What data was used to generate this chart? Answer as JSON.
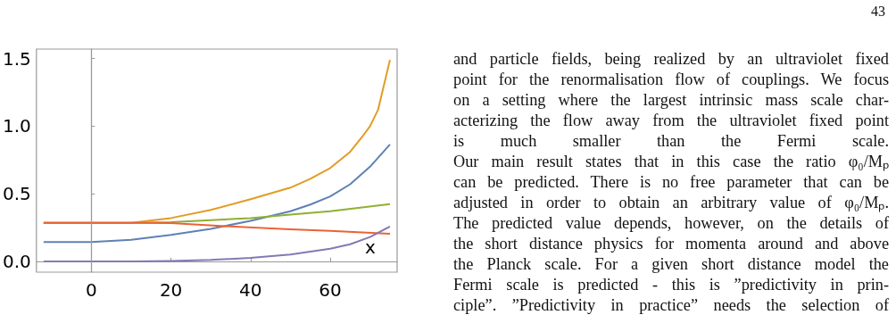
{
  "chart_data": {
    "type": "line",
    "xlabel": "x",
    "xlim": [
      -13.8,
      76.8
    ],
    "ylim": [
      -0.08,
      1.57
    ],
    "xticks": [
      0,
      20,
      40,
      60
    ],
    "yticks": [
      {
        "value": 0,
        "label": "0.0"
      },
      {
        "value": 0.5,
        "label": "0.5"
      },
      {
        "value": 1,
        "label": "1.0"
      },
      {
        "value": 1.5,
        "label": "1.5"
      }
    ],
    "marker": "none",
    "line_style": "solid",
    "ref_lines": [
      {
        "axis": "x",
        "value": 0,
        "label": null,
        "color": "#999999"
      }
    ],
    "series": [
      {
        "color": "#e19c24",
        "x": [
          -12,
          0,
          10,
          20,
          30,
          40,
          50,
          55,
          60,
          65,
          68,
          70,
          72,
          75
        ],
        "values": [
          0.285,
          0.285,
          0.285,
          0.32,
          0.38,
          0.46,
          0.545,
          0.61,
          0.69,
          0.81,
          0.92,
          1.0,
          1.12,
          1.49
        ]
      },
      {
        "color": "#5e81b5",
        "x": [
          -12,
          0,
          10,
          20,
          30,
          40,
          50,
          55,
          60,
          65,
          70,
          75
        ],
        "values": [
          0.143,
          0.143,
          0.16,
          0.196,
          0.24,
          0.3,
          0.37,
          0.42,
          0.48,
          0.57,
          0.7,
          0.865
        ]
      },
      {
        "color": "#8fb032",
        "x": [
          -12,
          0,
          10,
          20,
          30,
          40,
          50,
          60,
          75
        ],
        "values": [
          0.285,
          0.285,
          0.285,
          0.29,
          0.305,
          0.32,
          0.346,
          0.37,
          0.424
        ]
      },
      {
        "color": "#eb6235",
        "x": [
          -12,
          0,
          10,
          20,
          35,
          50,
          60,
          75
        ],
        "values": [
          0.285,
          0.285,
          0.285,
          0.283,
          0.258,
          0.236,
          0.225,
          0.203
        ]
      },
      {
        "color": "#8778b3",
        "x": [
          -12,
          0,
          10,
          20,
          30,
          40,
          50,
          60,
          65,
          70,
          75
        ],
        "values": [
          0,
          0,
          0,
          0.003,
          0.01,
          0.026,
          0.05,
          0.093,
          0.126,
          0.18,
          0.258
        ]
      }
    ],
    "annotations": [
      "43",
      "and particle fields, being realized by an ultraviolet fixed",
      "point for the renormalisation flow of couplings. We focus",
      "on a setting where the largest intrinsic mass scale char-",
      "acterizing the flow away from the ultraviolet fixed point",
      "is much smaller than the Fermi scale.",
      "Our main result states that in this case the ratio φ₀/Mₚ",
      "can be predicted. There is no free parameter that can be",
      "adjusted in order to obtain an arbitrary value of φ₀/Mₚ.",
      "The predicted value depends, however, on the details of",
      "the short distance physics for momenta around and above",
      "the Planck scale. For a given short distance model the",
      "Fermi scale is predicted - this is ”predictivity in prin-",
      "ciple”. ”Predictivity in practice” needs the selection of"
    ]
  }
}
